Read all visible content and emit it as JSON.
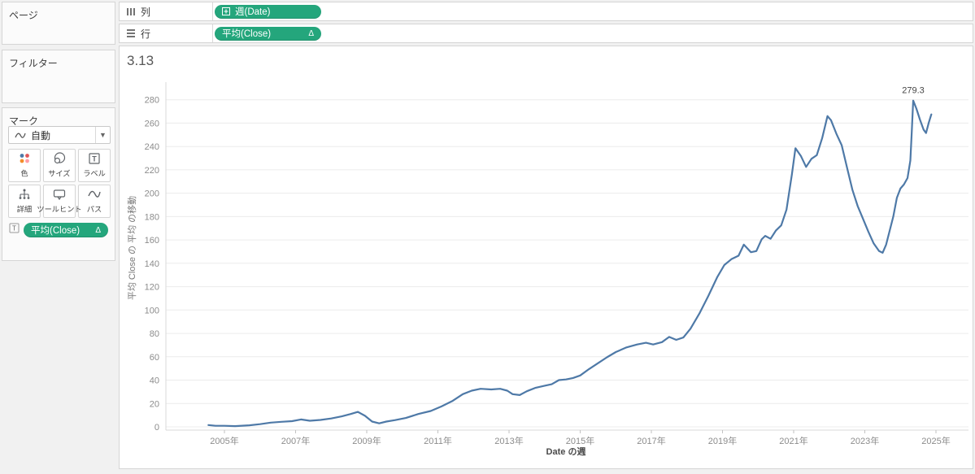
{
  "sidebar": {
    "pages_label": "ページ",
    "filters_label": "フィルター",
    "marks": {
      "title": "マーク",
      "mark_type": "自動",
      "buttons": [
        {
          "icon": "color-icon",
          "label": "色"
        },
        {
          "icon": "size-icon",
          "label": "サイズ"
        },
        {
          "icon": "label-icon",
          "label": "ラベル"
        },
        {
          "icon": "detail-icon",
          "label": "詳細"
        },
        {
          "icon": "tooltip-icon",
          "label": "ツールヒント"
        },
        {
          "icon": "path-icon",
          "label": "パス"
        }
      ],
      "pill": {
        "label": "平均(Close)",
        "badge": "Δ"
      }
    }
  },
  "shelves": {
    "columns": {
      "label": "列",
      "pill": "週(Date)"
    },
    "rows": {
      "label": "行",
      "pill": "平均(Close)",
      "badge": "Δ"
    }
  },
  "chart": {
    "corner_value": "3.13"
  },
  "colors": {
    "pill_green": "#24a67c",
    "line_blue": "#4e79a7",
    "grid": "#ececec",
    "axis": "#d9d9d9",
    "tick_text": "#8c8c8c"
  },
  "chart_data": {
    "type": "line",
    "title": "3.13",
    "xlabel": "Date の週",
    "ylabel": "平均 Close の 平均 の移動",
    "ylim": [
      0,
      280
    ],
    "ystep": 20,
    "grid": "horizontal",
    "legend": "none",
    "x_ticks": [
      {
        "year": 2005,
        "label": "2005年"
      },
      {
        "year": 2007,
        "label": "2007年"
      },
      {
        "year": 2009,
        "label": "2009年"
      },
      {
        "year": 2011,
        "label": "2011年"
      },
      {
        "year": 2013,
        "label": "2013年"
      },
      {
        "year": 2015,
        "label": "2015年"
      },
      {
        "year": 2017,
        "label": "2017年"
      },
      {
        "year": 2019,
        "label": "2019年"
      },
      {
        "year": 2021,
        "label": "2021年"
      },
      {
        "year": 2023,
        "label": "2023年"
      },
      {
        "year": 2025,
        "label": "2025年"
      }
    ],
    "annotation": {
      "year": 2024.36,
      "value": 279.3,
      "label": "279.3"
    },
    "points": [
      [
        2004.55,
        1.5
      ],
      [
        2004.75,
        0.9
      ],
      [
        2005.0,
        0.9
      ],
      [
        2005.3,
        0.6
      ],
      [
        2005.7,
        1.3
      ],
      [
        2006.0,
        2.3
      ],
      [
        2006.3,
        3.6
      ],
      [
        2006.6,
        4.3
      ],
      [
        2006.9,
        4.9
      ],
      [
        2007.15,
        6.3
      ],
      [
        2007.4,
        5.2
      ],
      [
        2007.7,
        5.9
      ],
      [
        2008.0,
        7.2
      ],
      [
        2008.3,
        9.0
      ],
      [
        2008.55,
        11.0
      ],
      [
        2008.75,
        12.8
      ],
      [
        2008.95,
        9.5
      ],
      [
        2009.15,
        4.5
      ],
      [
        2009.35,
        3.0
      ],
      [
        2009.55,
        4.5
      ],
      [
        2009.8,
        5.8
      ],
      [
        2010.1,
        7.6
      ],
      [
        2010.45,
        11.0
      ],
      [
        2010.8,
        13.6
      ],
      [
        2011.1,
        17.5
      ],
      [
        2011.4,
        22.0
      ],
      [
        2011.7,
        28.0
      ],
      [
        2011.95,
        31.0
      ],
      [
        2012.2,
        32.6
      ],
      [
        2012.5,
        32.0
      ],
      [
        2012.75,
        32.6
      ],
      [
        2012.95,
        31.0
      ],
      [
        2013.1,
        28.0
      ],
      [
        2013.3,
        27.2
      ],
      [
        2013.5,
        30.5
      ],
      [
        2013.75,
        33.5
      ],
      [
        2014.0,
        35.2
      ],
      [
        2014.2,
        36.5
      ],
      [
        2014.4,
        40.0
      ],
      [
        2014.6,
        40.6
      ],
      [
        2014.8,
        41.8
      ],
      [
        2015.0,
        44.0
      ],
      [
        2015.25,
        49.5
      ],
      [
        2015.5,
        54.5
      ],
      [
        2015.75,
        59.5
      ],
      [
        2016.0,
        64.0
      ],
      [
        2016.3,
        68.0
      ],
      [
        2016.6,
        70.5
      ],
      [
        2016.85,
        72.0
      ],
      [
        2017.05,
        70.5
      ],
      [
        2017.3,
        72.5
      ],
      [
        2017.5,
        77.0
      ],
      [
        2017.7,
        74.5
      ],
      [
        2017.9,
        76.5
      ],
      [
        2018.1,
        84.0
      ],
      [
        2018.35,
        97.0
      ],
      [
        2018.6,
        112.0
      ],
      [
        2018.85,
        128.0
      ],
      [
        2019.05,
        138.5
      ],
      [
        2019.25,
        143.5
      ],
      [
        2019.45,
        146.5
      ],
      [
        2019.6,
        156.0
      ],
      [
        2019.8,
        149.5
      ],
      [
        2019.95,
        150.5
      ],
      [
        2020.1,
        160.5
      ],
      [
        2020.2,
        163.5
      ],
      [
        2020.35,
        161.0
      ],
      [
        2020.5,
        168.0
      ],
      [
        2020.65,
        172.5
      ],
      [
        2020.8,
        186.0
      ],
      [
        2020.95,
        216.0
      ],
      [
        2021.05,
        238.5
      ],
      [
        2021.2,
        232.0
      ],
      [
        2021.35,
        222.5
      ],
      [
        2021.5,
        229.5
      ],
      [
        2021.65,
        232.5
      ],
      [
        2021.8,
        247.0
      ],
      [
        2021.95,
        266.0
      ],
      [
        2022.05,
        262.5
      ],
      [
        2022.2,
        251.0
      ],
      [
        2022.35,
        241.0
      ],
      [
        2022.5,
        222.0
      ],
      [
        2022.65,
        203.0
      ],
      [
        2022.8,
        189.0
      ],
      [
        2022.95,
        178.0
      ],
      [
        2023.1,
        167.0
      ],
      [
        2023.25,
        157.0
      ],
      [
        2023.4,
        150.5
      ],
      [
        2023.5,
        149.0
      ],
      [
        2023.6,
        156.0
      ],
      [
        2023.7,
        168.0
      ],
      [
        2023.8,
        180.0
      ],
      [
        2023.9,
        196.0
      ],
      [
        2024.0,
        204.0
      ],
      [
        2024.1,
        207.5
      ],
      [
        2024.2,
        213.0
      ],
      [
        2024.28,
        228.0
      ],
      [
        2024.32,
        252.0
      ],
      [
        2024.36,
        279.3
      ],
      [
        2024.45,
        272.5
      ],
      [
        2024.55,
        263.0
      ],
      [
        2024.65,
        254.5
      ],
      [
        2024.72,
        251.5
      ],
      [
        2024.8,
        260.5
      ],
      [
        2024.87,
        267.5
      ]
    ]
  }
}
